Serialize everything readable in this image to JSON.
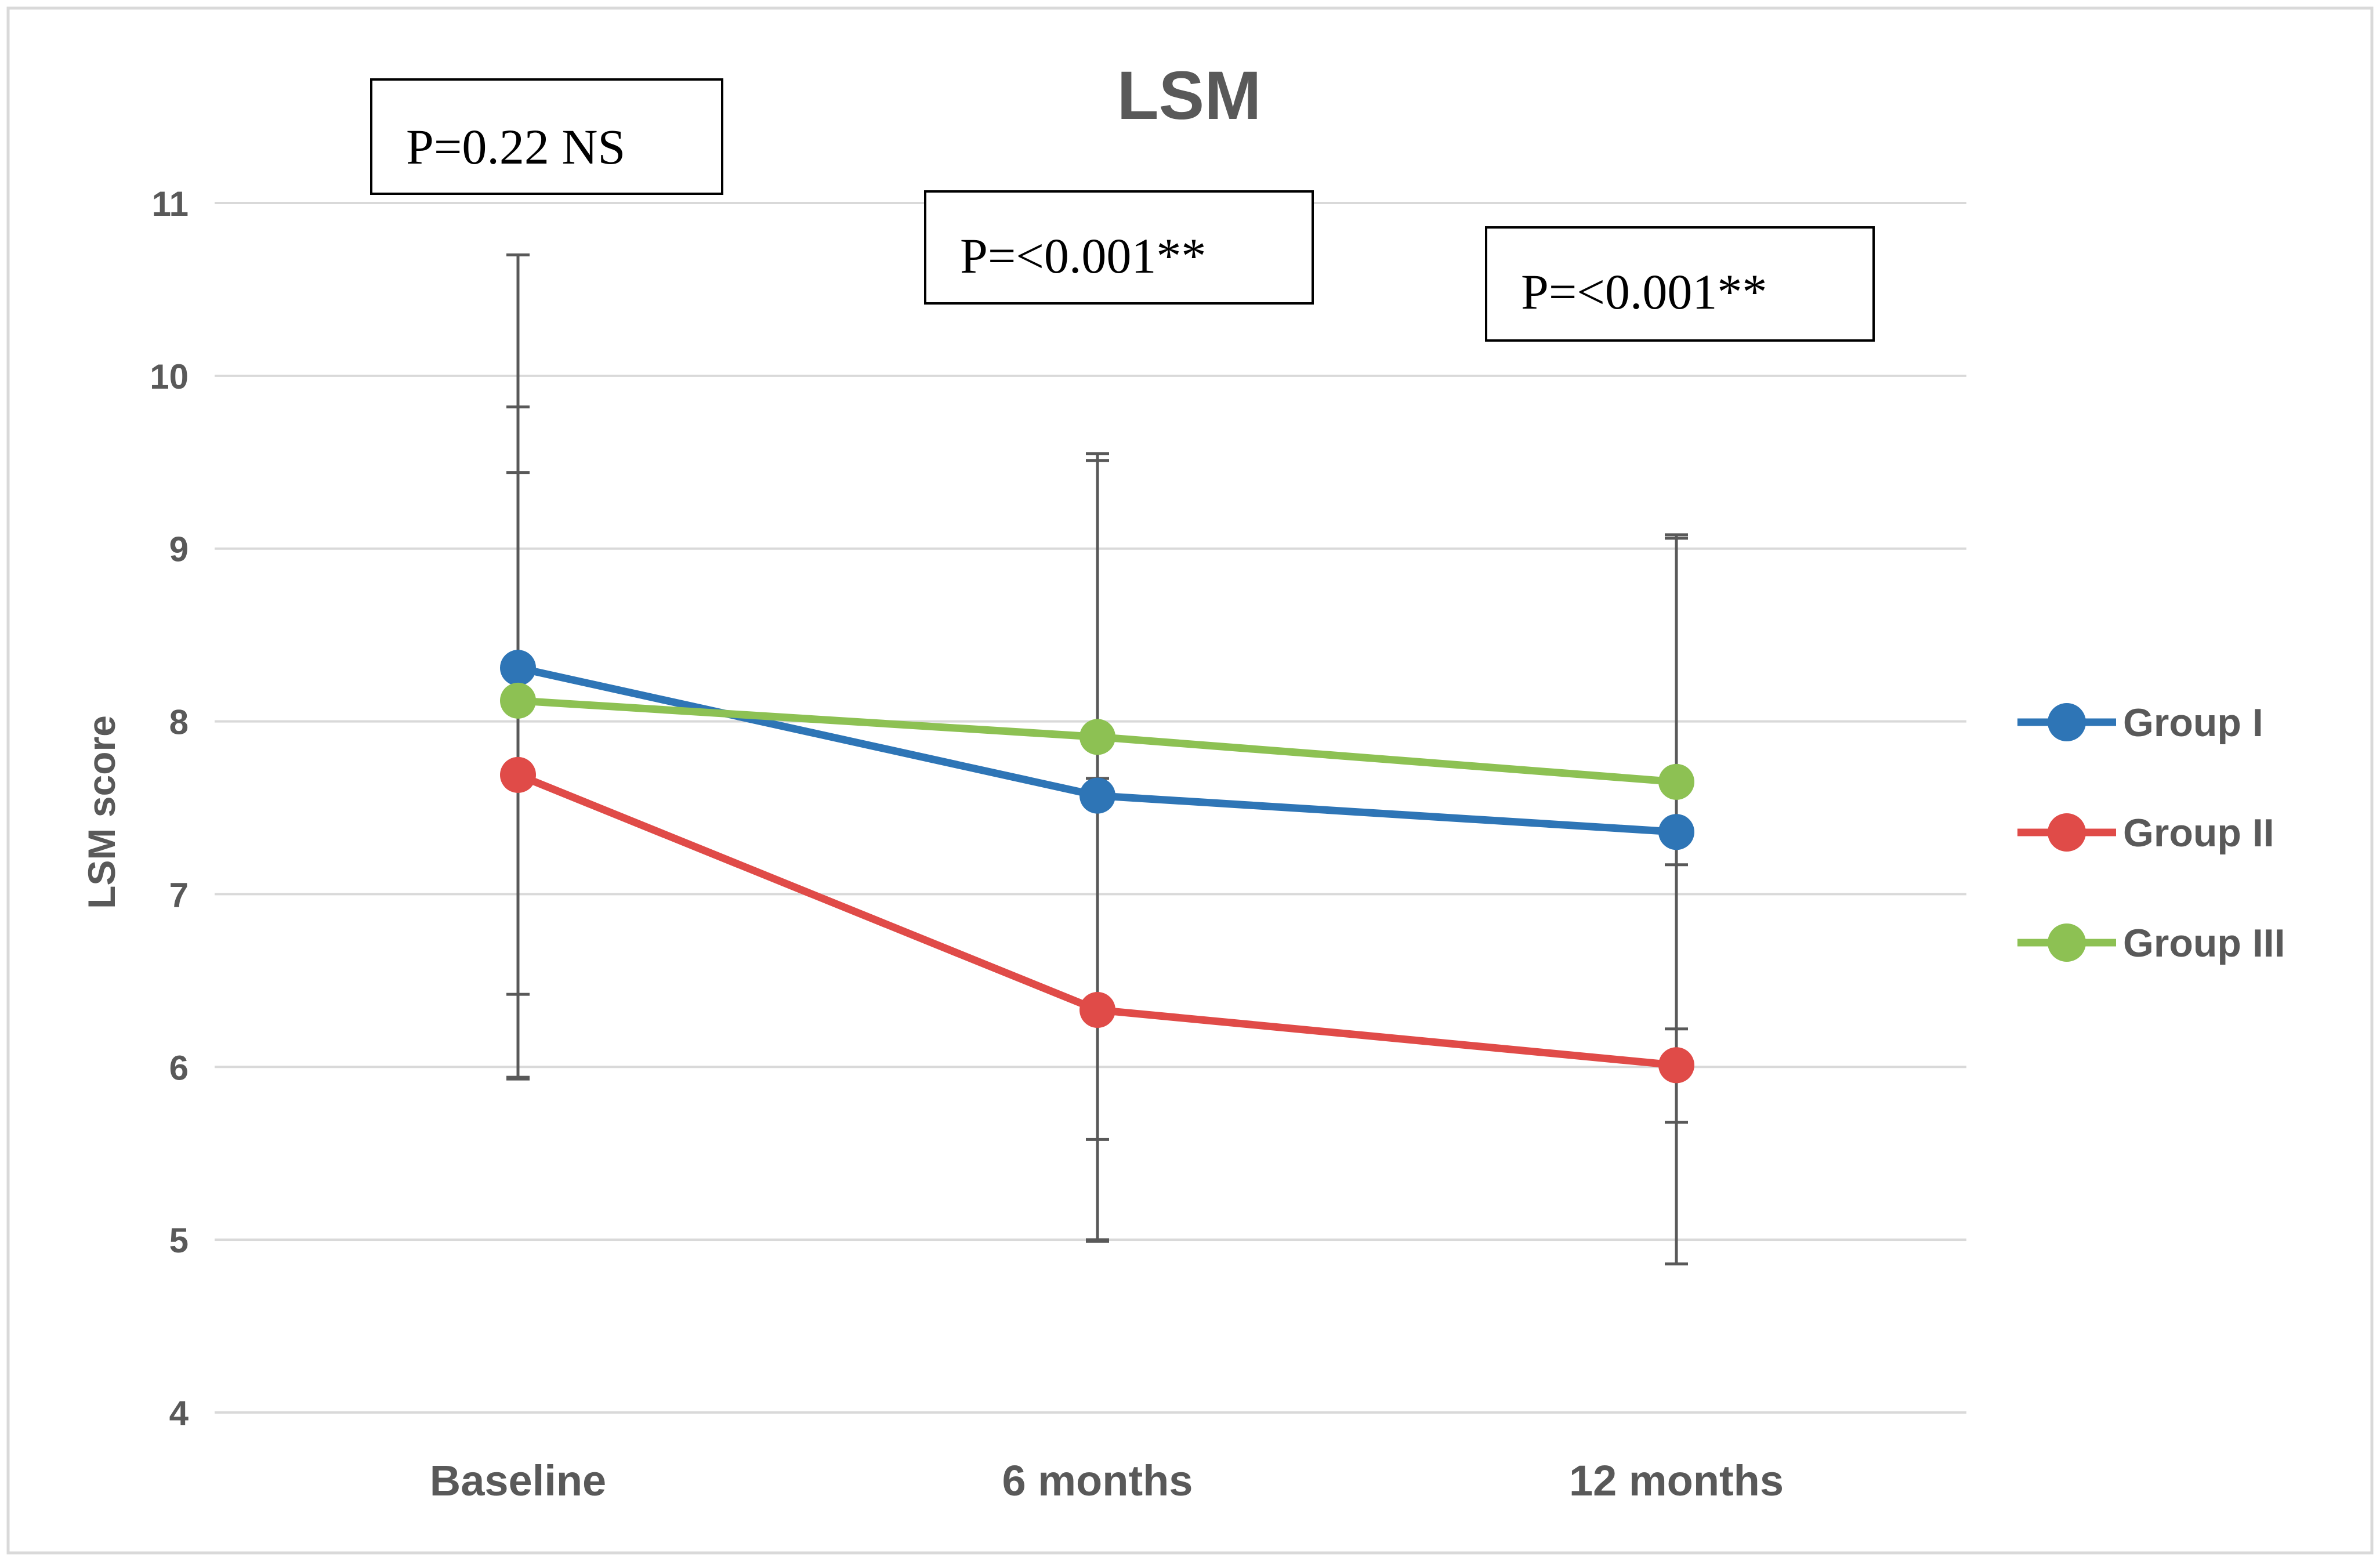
{
  "chart_data": {
    "type": "line",
    "title": "LSM",
    "xlabel": "",
    "ylabel": "LSM score",
    "categories": [
      "Baseline",
      "6 months",
      "12 months"
    ],
    "ylim": [
      4,
      11
    ],
    "yticks": [
      4,
      5,
      6,
      7,
      8,
      9,
      10,
      11
    ],
    "grid": true,
    "legend_position": "right",
    "series": [
      {
        "name": "Group I",
        "color": "#2E75B6",
        "values": [
          8.31,
          7.57,
          7.36
        ],
        "err_upper": [
          10.7,
          9.55,
          9.08
        ],
        "err_lower": [
          5.93,
          5.58,
          5.68
        ]
      },
      {
        "name": "Group II",
        "color": "#E04B48",
        "values": [
          7.69,
          6.33,
          6.01
        ],
        "err_upper": [
          9.44,
          7.67,
          7.17
        ],
        "err_lower": [
          5.94,
          4.99,
          4.86
        ]
      },
      {
        "name": "Group III",
        "color": "#8DC153",
        "values": [
          8.12,
          7.91,
          7.65
        ],
        "err_upper": [
          9.82,
          9.51,
          9.06
        ],
        "err_lower": [
          6.42,
          5.0,
          6.22
        ]
      }
    ],
    "annotations": [
      {
        "category": "Baseline",
        "text": "P=0.22 NS"
      },
      {
        "category": "6 months",
        "text": "P=<0.001**"
      },
      {
        "category": "12 months",
        "text": "P=<0.001**"
      }
    ]
  }
}
